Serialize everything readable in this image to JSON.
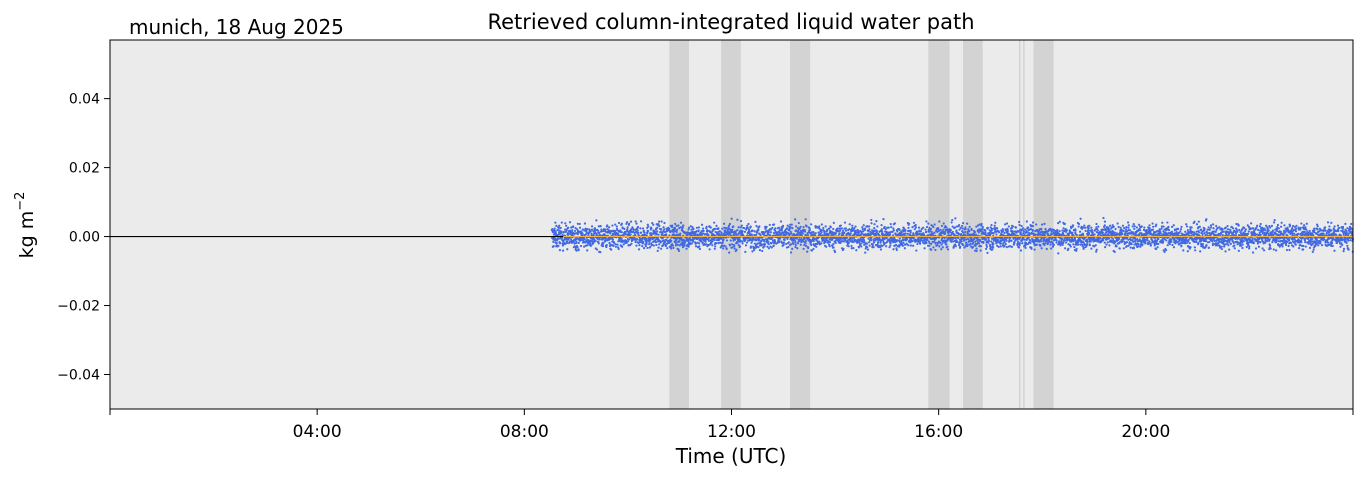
{
  "chart_data": {
    "type": "scatter",
    "title": "Retrieved column-integrated liquid water path",
    "subtitle": "munich, 18 Aug 2025",
    "xlabel": "Time (UTC)",
    "ylabel": "kg m",
    "ylabel_sup": "−2",
    "xlim_hours": [
      0,
      24
    ],
    "ylim": [
      -0.05,
      0.057
    ],
    "x_ticks": [
      {
        "hour": 0,
        "label": ""
      },
      {
        "hour": 4,
        "label": "04:00"
      },
      {
        "hour": 8,
        "label": "08:00"
      },
      {
        "hour": 12,
        "label": "12:00"
      },
      {
        "hour": 16,
        "label": "16:00"
      },
      {
        "hour": 20,
        "label": "20:00"
      },
      {
        "hour": 24,
        "label": ""
      }
    ],
    "y_ticks": [
      {
        "value": 0.04,
        "label": "0.04"
      },
      {
        "value": 0.02,
        "label": "0.02"
      },
      {
        "value": 0.0,
        "label": "0.00"
      },
      {
        "value": -0.02,
        "label": "−0.02"
      },
      {
        "value": -0.04,
        "label": "−0.04"
      }
    ],
    "reference_line_y": 0.0,
    "flagged_periods_hours": [
      [
        10.8,
        11.18
      ],
      [
        11.8,
        12.18
      ],
      [
        13.13,
        13.52
      ],
      [
        15.8,
        16.21
      ],
      [
        16.47,
        16.85
      ],
      [
        17.55,
        17.58
      ],
      [
        17.63,
        17.66
      ],
      [
        17.83,
        18.22
      ]
    ],
    "series": [
      {
        "kind": "scatter",
        "x_range_hours": [
          8.53,
          24.0
        ],
        "y_center": 0.0,
        "y_spread": 0.0025,
        "y_max": 0.007,
        "y_min": -0.0065
      },
      {
        "kind": "line",
        "x_range_hours": [
          8.75,
          24.0
        ],
        "y_value": 0.0
      }
    ],
    "colors": {
      "plot_background": "#ebebeb",
      "flagged_band": "#d3d3d3",
      "scatter_points": "#4169e1",
      "mean_line": "#f5b041",
      "reference_line": "#000000"
    },
    "grid": false
  }
}
